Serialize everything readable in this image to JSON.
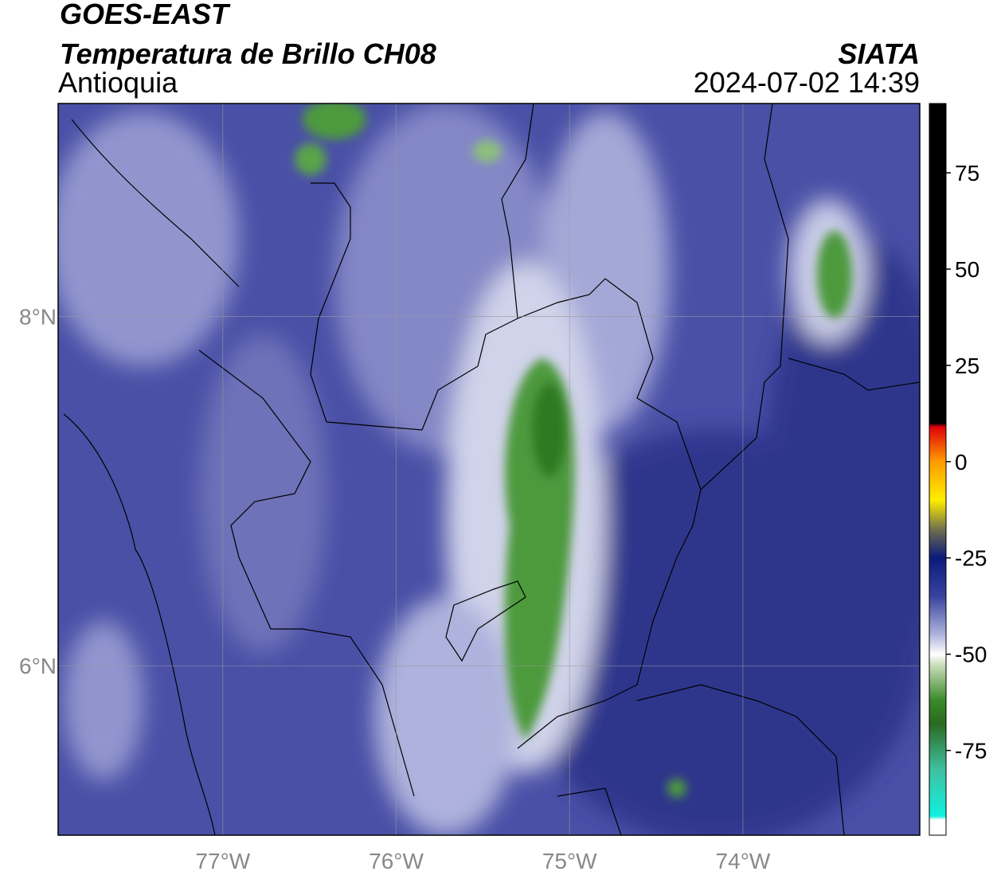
{
  "header": {
    "satellite": "GOES-EAST",
    "product": "Temperatura de Brillo CH08",
    "region": "Antioquia",
    "source": "SIATA",
    "datetime": "2024-07-02 14:39"
  },
  "map": {
    "xlim": [
      -77.95,
      -72.98
    ],
    "ylim": [
      5.03,
      9.22
    ],
    "xticks": [
      {
        "value": -77,
        "label": "77°W"
      },
      {
        "value": -76,
        "label": "76°W"
      },
      {
        "value": -75,
        "label": "75°W"
      },
      {
        "value": -74,
        "label": "74°W"
      }
    ],
    "yticks": [
      {
        "value": 6,
        "label": "6°N"
      },
      {
        "value": 8,
        "label": "8°N"
      }
    ]
  },
  "colorbar": {
    "lim": [
      -97,
      93
    ],
    "ticks": [
      -75,
      -50,
      -25,
      0,
      25,
      50,
      75
    ]
  }
}
